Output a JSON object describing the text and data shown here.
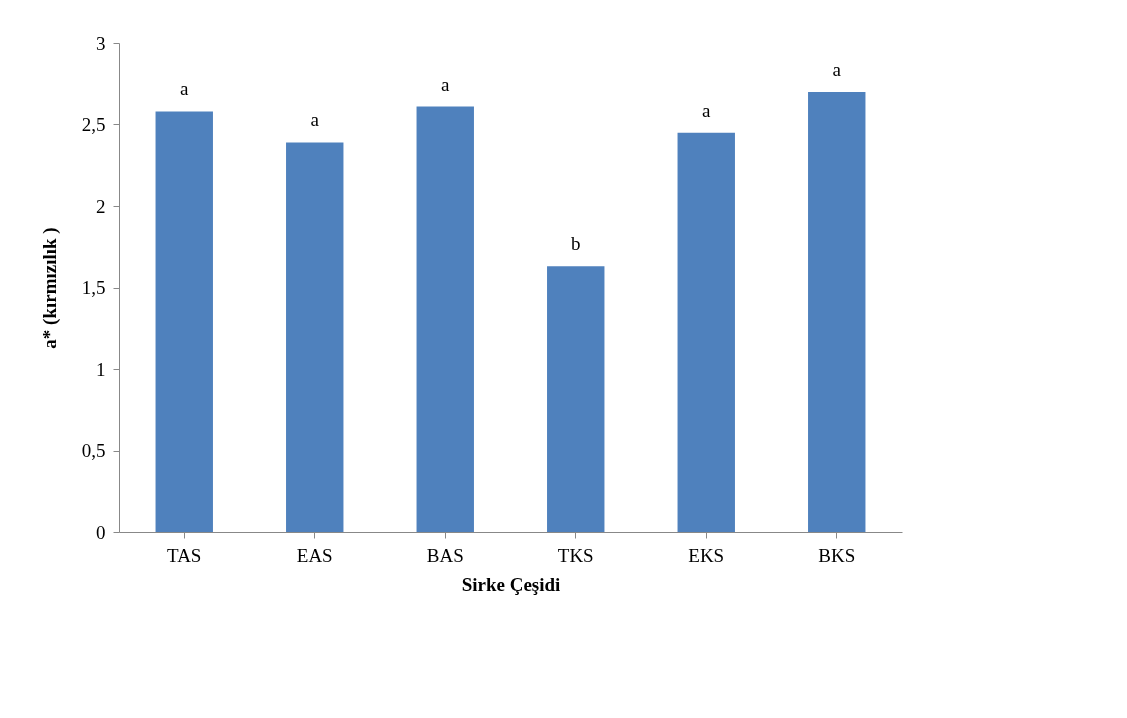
{
  "chart_data": {
    "type": "bar",
    "xlabel": "Sirke Çeşidi",
    "ylabel": "a* (kırmızılık )",
    "categories": [
      "TAS",
      "EAS",
      "BAS",
      "TKS",
      "EKS",
      "BKS"
    ],
    "values": [
      2.58,
      2.39,
      2.61,
      1.63,
      2.45,
      2.7
    ],
    "color": "#4f81bd",
    "ylim": [
      0,
      3
    ],
    "yticks": [
      0,
      {
        "value": 0.5,
        "label": "0,5"
      },
      1,
      {
        "value": 1.5,
        "label": "1,5"
      },
      2,
      {
        "value": 2.5,
        "label": "2,5"
      },
      3
    ],
    "grid": false,
    "annotations": [
      {
        "text": "a",
        "x": "TAS",
        "y": 2.58
      },
      {
        "text": "a",
        "x": "EAS",
        "y": 2.39
      },
      {
        "text": "a",
        "x": "BAS",
        "y": 2.61
      },
      {
        "text": "b",
        "x": "TKS",
        "y": 1.63
      },
      {
        "text": "a",
        "x": "EKS",
        "y": 2.45
      },
      {
        "text": "a",
        "x": "BKS",
        "y": 2.7
      }
    ]
  }
}
